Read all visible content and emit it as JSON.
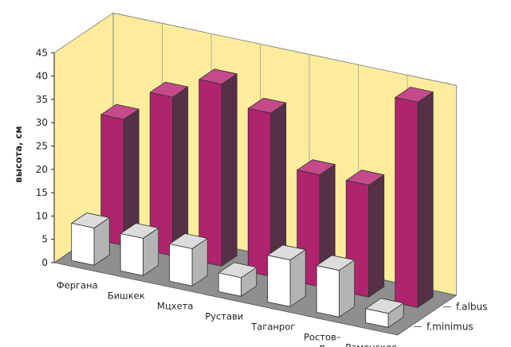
{
  "chart_data": {
    "type": "bar",
    "variant": "3d-column",
    "title": "",
    "ylabel": "высота, см",
    "xlabel": "",
    "ylim": [
      0,
      45
    ],
    "yticks": [
      0,
      5,
      10,
      15,
      20,
      25,
      30,
      35,
      40,
      45
    ],
    "grid": true,
    "categories": [
      "Фергана",
      "Бишкек",
      "Мцхета",
      "Рустави",
      "Таганрог",
      "Ростов–\nна–Дону",
      "Раменское"
    ],
    "series": [
      {
        "name": "f.minimus",
        "values": [
          8,
          8,
          8,
          4,
          10,
          10,
          3
        ]
      },
      {
        "name": "f.albus",
        "values": [
          27,
          34,
          39,
          35,
          24,
          24,
          44
        ]
      }
    ],
    "colors": {
      "back_wall": "#fcec9c",
      "floor": "#8f8f8f",
      "albus_front": "#b0246e",
      "albus_side": "#553047",
      "albus_top": "#c44a8b",
      "minimus_front": "#ffffff",
      "minimus_side": "#b4b4b4",
      "minimus_top": "#dcdcdc"
    }
  }
}
